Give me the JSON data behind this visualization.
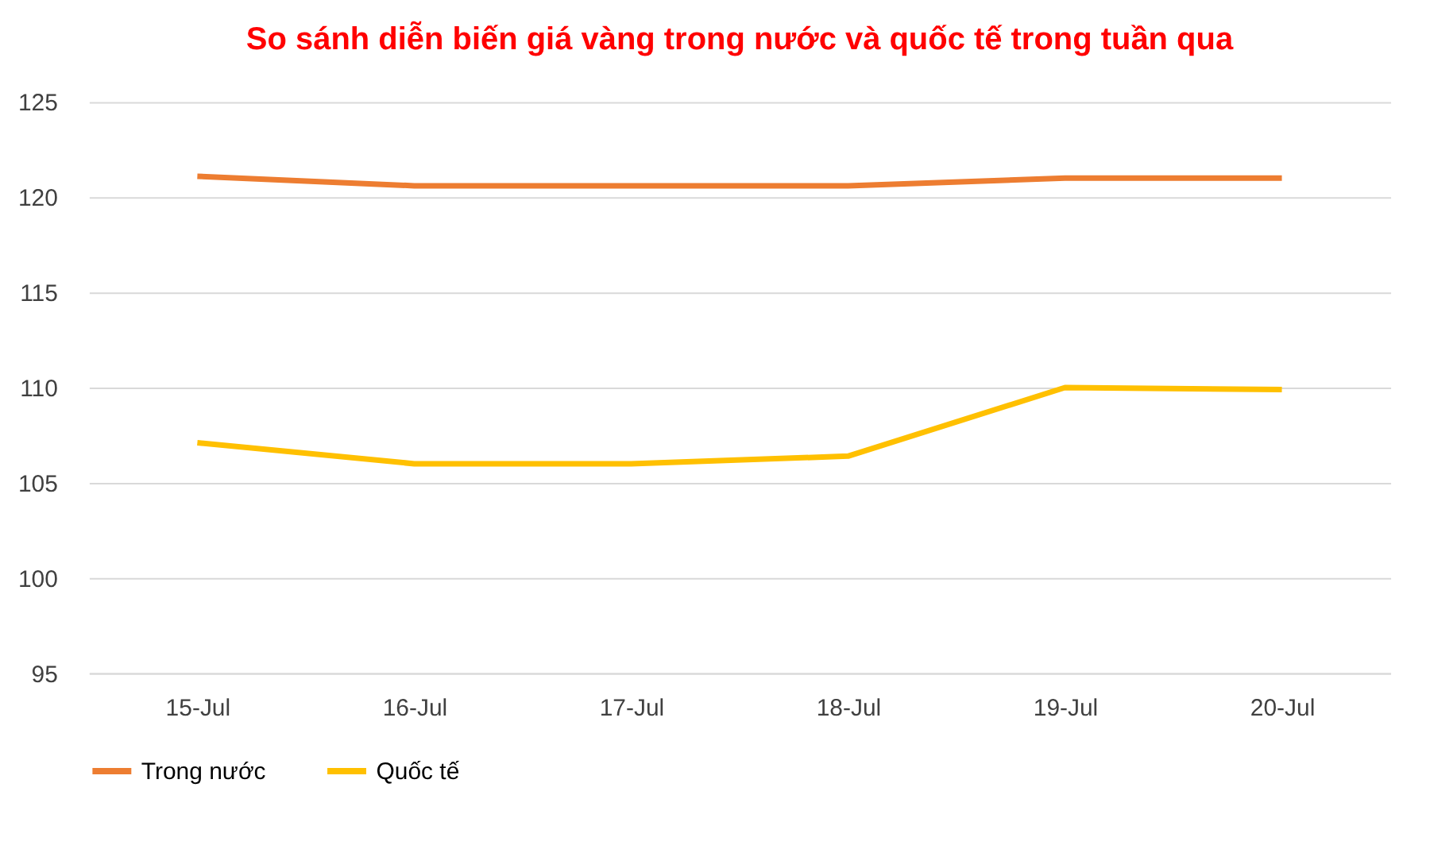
{
  "chart_data": {
    "type": "line",
    "title": "So sánh diễn biến giá vàng trong nước và quốc tế trong tuần qua",
    "categories": [
      "15-Jul",
      "16-Jul",
      "17-Jul",
      "18-Jul",
      "19-Jul",
      "20-Jul"
    ],
    "series": [
      {
        "name": "Trong nước",
        "color": "#ed7d31",
        "values": [
          121.1,
          120.6,
          120.6,
          120.6,
          121.0,
          121.0
        ]
      },
      {
        "name": "Quốc tế",
        "color": "#ffc000",
        "values": [
          107.1,
          106.0,
          106.0,
          106.4,
          110.0,
          109.9
        ]
      }
    ],
    "ylim": [
      95,
      125
    ],
    "yticks": [
      95,
      100,
      105,
      110,
      115,
      120,
      125
    ],
    "grid": "y",
    "legend": "bottom",
    "marker": "none",
    "line_style": "solid"
  }
}
